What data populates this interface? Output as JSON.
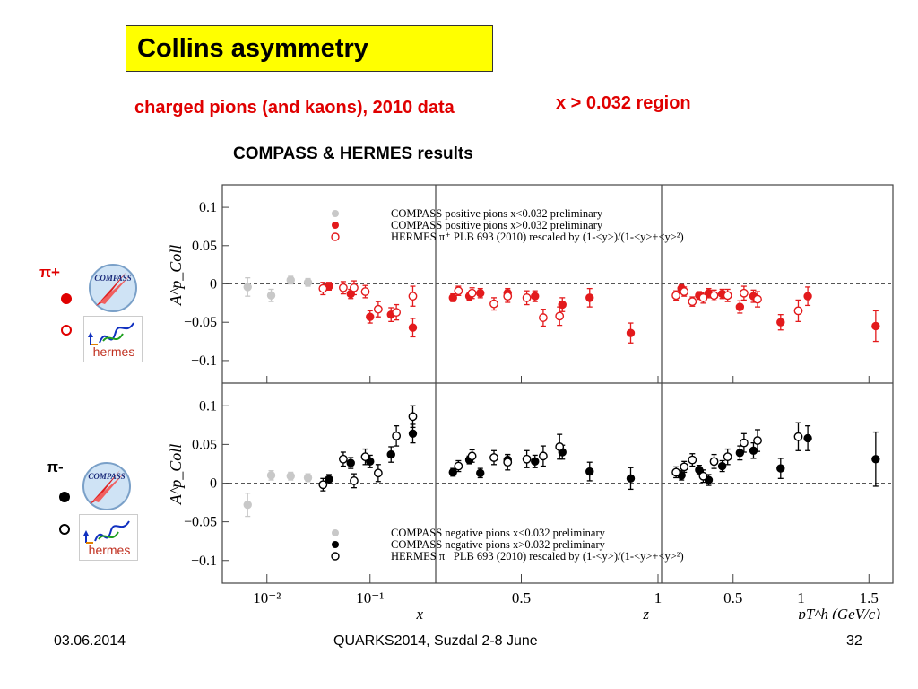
{
  "slide": {
    "title": "Collins asymmetry",
    "subtitle_left": "charged pions (and kaons), 2010 data",
    "subtitle_right": "x > 0.032 region",
    "heading": "COMPASS & HERMES results",
    "footer_date": "03.06.2014",
    "footer_conference": "QUARKS2014, Suzdal 2-8 June",
    "footer_page": "32",
    "colors": {
      "title_bg": "#ffff00",
      "accent_red": "#e00000",
      "positive": "#e31a1c",
      "negative": "#000000",
      "faded": "#c8c8c8"
    }
  },
  "side_panel": {
    "pi_plus_label": "π+",
    "pi_minus_label": "π-",
    "compass_logo_text": "COMPASS",
    "hermes_logo_text": "hermes",
    "filled_marker": "filled-circle-icon",
    "open_marker": "open-circle-icon"
  },
  "chart_data": {
    "type": "scatter",
    "layout": "2 rows (π+, π−) × 3 columns (x, z, pT)",
    "ylabel": "A^p_Coll",
    "ylim": [
      -0.12,
      0.12
    ],
    "yticks": [
      "0.1",
      "0.05",
      "0",
      "−0.05",
      "−0.1"
    ],
    "reference_line": 0,
    "columns": [
      {
        "name": "x",
        "xlabel": "x",
        "scale": "log",
        "xlim": [
          0.004,
          0.4
        ],
        "ticks": [
          0.01,
          0.1
        ],
        "tick_labels": [
          "10⁻²",
          "10⁻¹"
        ]
      },
      {
        "name": "z",
        "xlabel": "z",
        "scale": "linear",
        "xlim": [
          0.2,
          1.0
        ],
        "ticks": [
          0.5,
          1
        ],
        "tick_labels": [
          "0.5",
          "1"
        ]
      },
      {
        "name": "pT",
        "xlabel": "pT^h (GeV/c)",
        "scale": "linear",
        "xlim": [
          0.0,
          1.65
        ],
        "ticks": [
          0.5,
          1,
          1.5
        ],
        "tick_labels": [
          "0.5",
          "1",
          "1.5"
        ]
      }
    ],
    "legend_top": [
      "COMPASS positive pions  x<0.032 preliminary",
      "COMPASS positive pions  x>0.032 preliminary",
      "HERMES π⁺  PLB 693 (2010) rescaled by (1-<y>)/(1-<y>+<y>²)"
    ],
    "legend_bottom": [
      "COMPASS negative pions  x<0.032 preliminary",
      "COMPASS negative pions  x>0.032 preliminary",
      "HERMES π⁻  PLB 693 (2010) rescaled by (1-<y>)/(1-<y>+<y>²)"
    ],
    "panels": [
      {
        "row": "pi_plus",
        "column": "x",
        "color": "#e31a1c",
        "series": [
          {
            "name": "COMPASS positive pions  x<0.032 preliminary",
            "style": "faded",
            "x": [
              0.0065,
              0.011,
              0.017,
              0.025
            ],
            "y": [
              -0.004,
              -0.015,
              0.005,
              0.002
            ],
            "err": [
              0.012,
              0.008,
              0.005,
              0.005
            ]
          },
          {
            "name": "COMPASS positive pions  x>0.032 preliminary",
            "style": "filled",
            "x": [
              0.04,
              0.065,
              0.1,
              0.16,
              0.26
            ],
            "y": [
              -0.003,
              -0.013,
              -0.043,
              -0.04,
              -0.057
            ],
            "err": [
              0.005,
              0.006,
              0.008,
              0.009,
              0.012
            ]
          },
          {
            "name": "HERMES π⁺  PLB 693 (2010) rescaled by (1-<y>)/(1-<y>+<y>²)",
            "style": "open",
            "x": [
              0.035,
              0.055,
              0.07,
              0.09,
              0.12,
              0.18,
              0.26
            ],
            "y": [
              -0.006,
              -0.005,
              -0.005,
              -0.01,
              -0.033,
              -0.037,
              -0.016
            ],
            "err": [
              0.008,
              0.008,
              0.009,
              0.008,
              0.01,
              0.01,
              0.013
            ]
          }
        ]
      },
      {
        "row": "pi_plus",
        "column": "z",
        "color": "#e31a1c",
        "series": [
          {
            "name": "COMPASS positive pions  x>0.032 preliminary",
            "style": "filled",
            "x": [
              0.25,
              0.31,
              0.35,
              0.45,
              0.55,
              0.65,
              0.75,
              0.9
            ],
            "y": [
              -0.018,
              -0.016,
              -0.012,
              -0.012,
              -0.016,
              -0.027,
              -0.018,
              -0.064
            ],
            "err": [
              0.005,
              0.005,
              0.006,
              0.006,
              0.007,
              0.009,
              0.012,
              0.013
            ]
          },
          {
            "name": "HERMES π⁺  PLB 693 (2010) rescaled by (1-<y>)/(1-<y>+<y>²)",
            "style": "open",
            "x": [
              0.27,
              0.32,
              0.4,
              0.45,
              0.52,
              0.58,
              0.64
            ],
            "y": [
              -0.009,
              -0.012,
              -0.026,
              -0.016,
              -0.018,
              -0.044,
              -0.042
            ],
            "err": [
              0.006,
              0.007,
              0.008,
              0.008,
              0.009,
              0.011,
              0.012
            ]
          }
        ]
      },
      {
        "row": "pi_plus",
        "column": "pT",
        "color": "#e31a1c",
        "series": [
          {
            "name": "COMPASS positive pions  x>0.032 preliminary",
            "style": "filled",
            "x": [
              0.12,
              0.25,
              0.32,
              0.42,
              0.55,
              0.65,
              0.85,
              1.05,
              1.55
            ],
            "y": [
              -0.006,
              -0.015,
              -0.012,
              -0.013,
              -0.03,
              -0.016,
              -0.05,
              -0.016,
              -0.055
            ],
            "err": [
              0.005,
              0.005,
              0.006,
              0.006,
              0.008,
              0.008,
              0.01,
              0.012,
              0.02
            ]
          },
          {
            "name": "HERMES π⁺  PLB 693 (2010) rescaled by (1-<y>)/(1-<y>+<y>²)",
            "style": "open",
            "x": [
              0.08,
              0.14,
              0.2,
              0.28,
              0.36,
              0.46,
              0.58,
              0.68,
              0.98
            ],
            "y": [
              -0.015,
              -0.01,
              -0.023,
              -0.018,
              -0.015,
              -0.015,
              -0.012,
              -0.02,
              -0.035
            ],
            "err": [
              0.006,
              0.006,
              0.006,
              0.007,
              0.007,
              0.008,
              0.009,
              0.01,
              0.014
            ]
          }
        ]
      },
      {
        "row": "pi_minus",
        "column": "x",
        "color": "#000000",
        "series": [
          {
            "name": "COMPASS negative pions  x<0.032 preliminary",
            "style": "faded",
            "x": [
              0.0065,
              0.011,
              0.017,
              0.025
            ],
            "y": [
              -0.028,
              0.01,
              0.009,
              0.007
            ],
            "err": [
              0.015,
              0.006,
              0.005,
              0.005
            ]
          },
          {
            "name": "COMPASS negative pions  x>0.032 preliminary",
            "style": "filled",
            "x": [
              0.04,
              0.065,
              0.1,
              0.16,
              0.26
            ],
            "y": [
              0.005,
              0.026,
              0.028,
              0.037,
              0.064
            ],
            "err": [
              0.006,
              0.007,
              0.008,
              0.01,
              0.012
            ]
          },
          {
            "name": "HERMES π⁻  PLB 693 (2010) rescaled by (1-<y>)/(1-<y>+<y>²)",
            "style": "open",
            "x": [
              0.035,
              0.055,
              0.07,
              0.09,
              0.12,
              0.18,
              0.26
            ],
            "y": [
              -0.002,
              0.031,
              0.003,
              0.034,
              0.013,
              0.061,
              0.086
            ],
            "err": [
              0.008,
              0.009,
              0.009,
              0.01,
              0.011,
              0.013,
              0.014
            ]
          }
        ]
      },
      {
        "row": "pi_minus",
        "column": "z",
        "color": "#000000",
        "series": [
          {
            "name": "COMPASS negative pions  x>0.032 preliminary",
            "style": "filled",
            "x": [
              0.25,
              0.31,
              0.35,
              0.45,
              0.55,
              0.65,
              0.75,
              0.9
            ],
            "y": [
              0.014,
              0.03,
              0.013,
              0.03,
              0.028,
              0.04,
              0.015,
              0.006
            ],
            "err": [
              0.005,
              0.005,
              0.006,
              0.007,
              0.008,
              0.009,
              0.012,
              0.014
            ]
          },
          {
            "name": "HERMES π⁻  PLB 693 (2010) rescaled by (1-<y>)/(1-<y>+<y>²)",
            "style": "open",
            "x": [
              0.27,
              0.32,
              0.4,
              0.45,
              0.52,
              0.58,
              0.64
            ],
            "y": [
              0.022,
              0.035,
              0.033,
              0.027,
              0.031,
              0.035,
              0.047
            ],
            "err": [
              0.007,
              0.008,
              0.009,
              0.01,
              0.011,
              0.013,
              0.016
            ]
          }
        ]
      },
      {
        "row": "pi_minus",
        "column": "pT",
        "color": "#000000",
        "series": [
          {
            "name": "COMPASS negative pions  x>0.032 preliminary",
            "style": "filled",
            "x": [
              0.12,
              0.25,
              0.32,
              0.42,
              0.55,
              0.65,
              0.85,
              1.05,
              1.55
            ],
            "y": [
              0.01,
              0.017,
              0.004,
              0.022,
              0.039,
              0.042,
              0.019,
              0.058,
              0.031
            ],
            "err": [
              0.006,
              0.006,
              0.007,
              0.007,
              0.009,
              0.01,
              0.013,
              0.016,
              0.035
            ]
          },
          {
            "name": "HERMES π⁻  PLB 693 (2010) rescaled by (1-<y>)/(1-<y>+<y>²)",
            "style": "open",
            "x": [
              0.08,
              0.14,
              0.2,
              0.28,
              0.36,
              0.46,
              0.58,
              0.68,
              0.98
            ],
            "y": [
              0.014,
              0.021,
              0.03,
              0.009,
              0.028,
              0.034,
              0.052,
              0.055,
              0.06
            ],
            "err": [
              0.007,
              0.007,
              0.008,
              0.008,
              0.009,
              0.01,
              0.012,
              0.014,
              0.018
            ]
          }
        ]
      }
    ]
  }
}
